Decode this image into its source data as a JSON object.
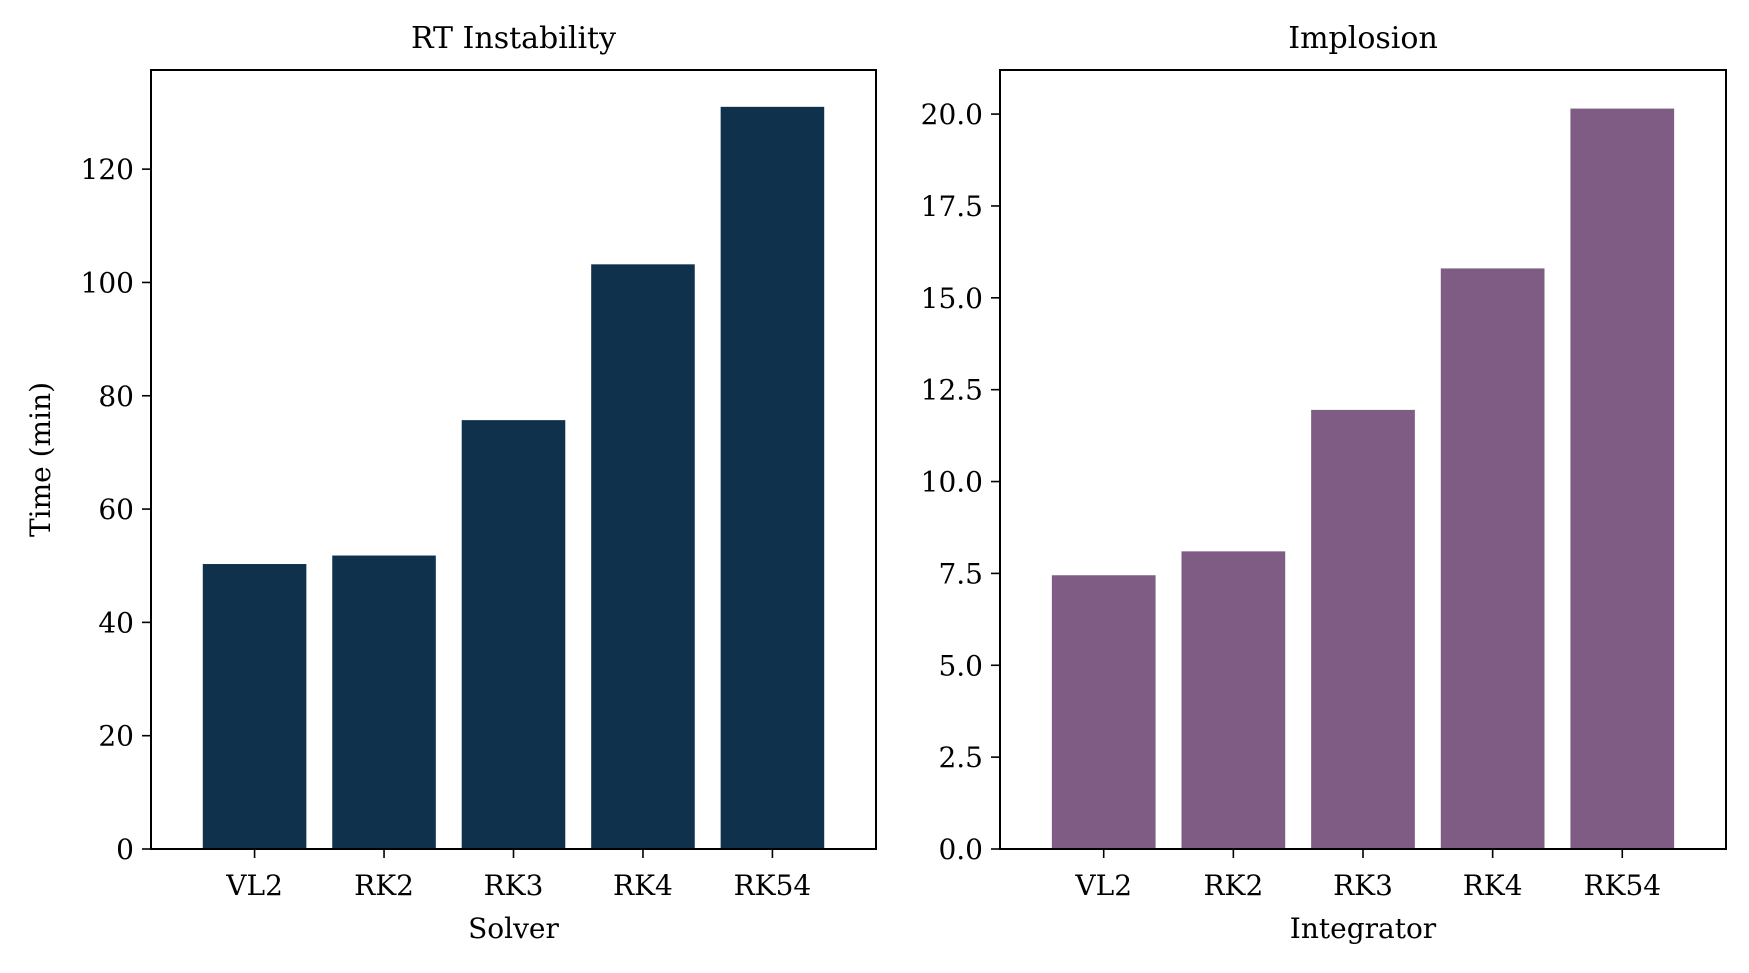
{
  "chart_data": [
    {
      "type": "bar",
      "title": "RT Instability",
      "xlabel": "Solver",
      "ylabel": "Time (min)",
      "categories": [
        "VL2",
        "RK2",
        "RK3",
        "RK4",
        "RK54"
      ],
      "values": [
        50.3,
        51.8,
        75.7,
        103.2,
        131.0
      ],
      "ylim": [
        0,
        137.5
      ],
      "yticks": [
        "0",
        "20",
        "40",
        "60",
        "80",
        "100",
        "120"
      ],
      "color": "#10314c",
      "grid": false
    },
    {
      "type": "bar",
      "title": "Implosion",
      "xlabel": "Integrator",
      "ylabel": "",
      "categories": [
        "VL2",
        "RK2",
        "RK3",
        "RK4",
        "RK54"
      ],
      "values": [
        7.45,
        8.1,
        11.95,
        15.8,
        20.15
      ],
      "ylim": [
        0,
        21.2
      ],
      "yticks": [
        "0.0",
        "2.5",
        "5.0",
        "7.5",
        "10.0",
        "12.5",
        "15.0",
        "17.5",
        "20.0"
      ],
      "color": "#7f5c83",
      "grid": false
    }
  ]
}
